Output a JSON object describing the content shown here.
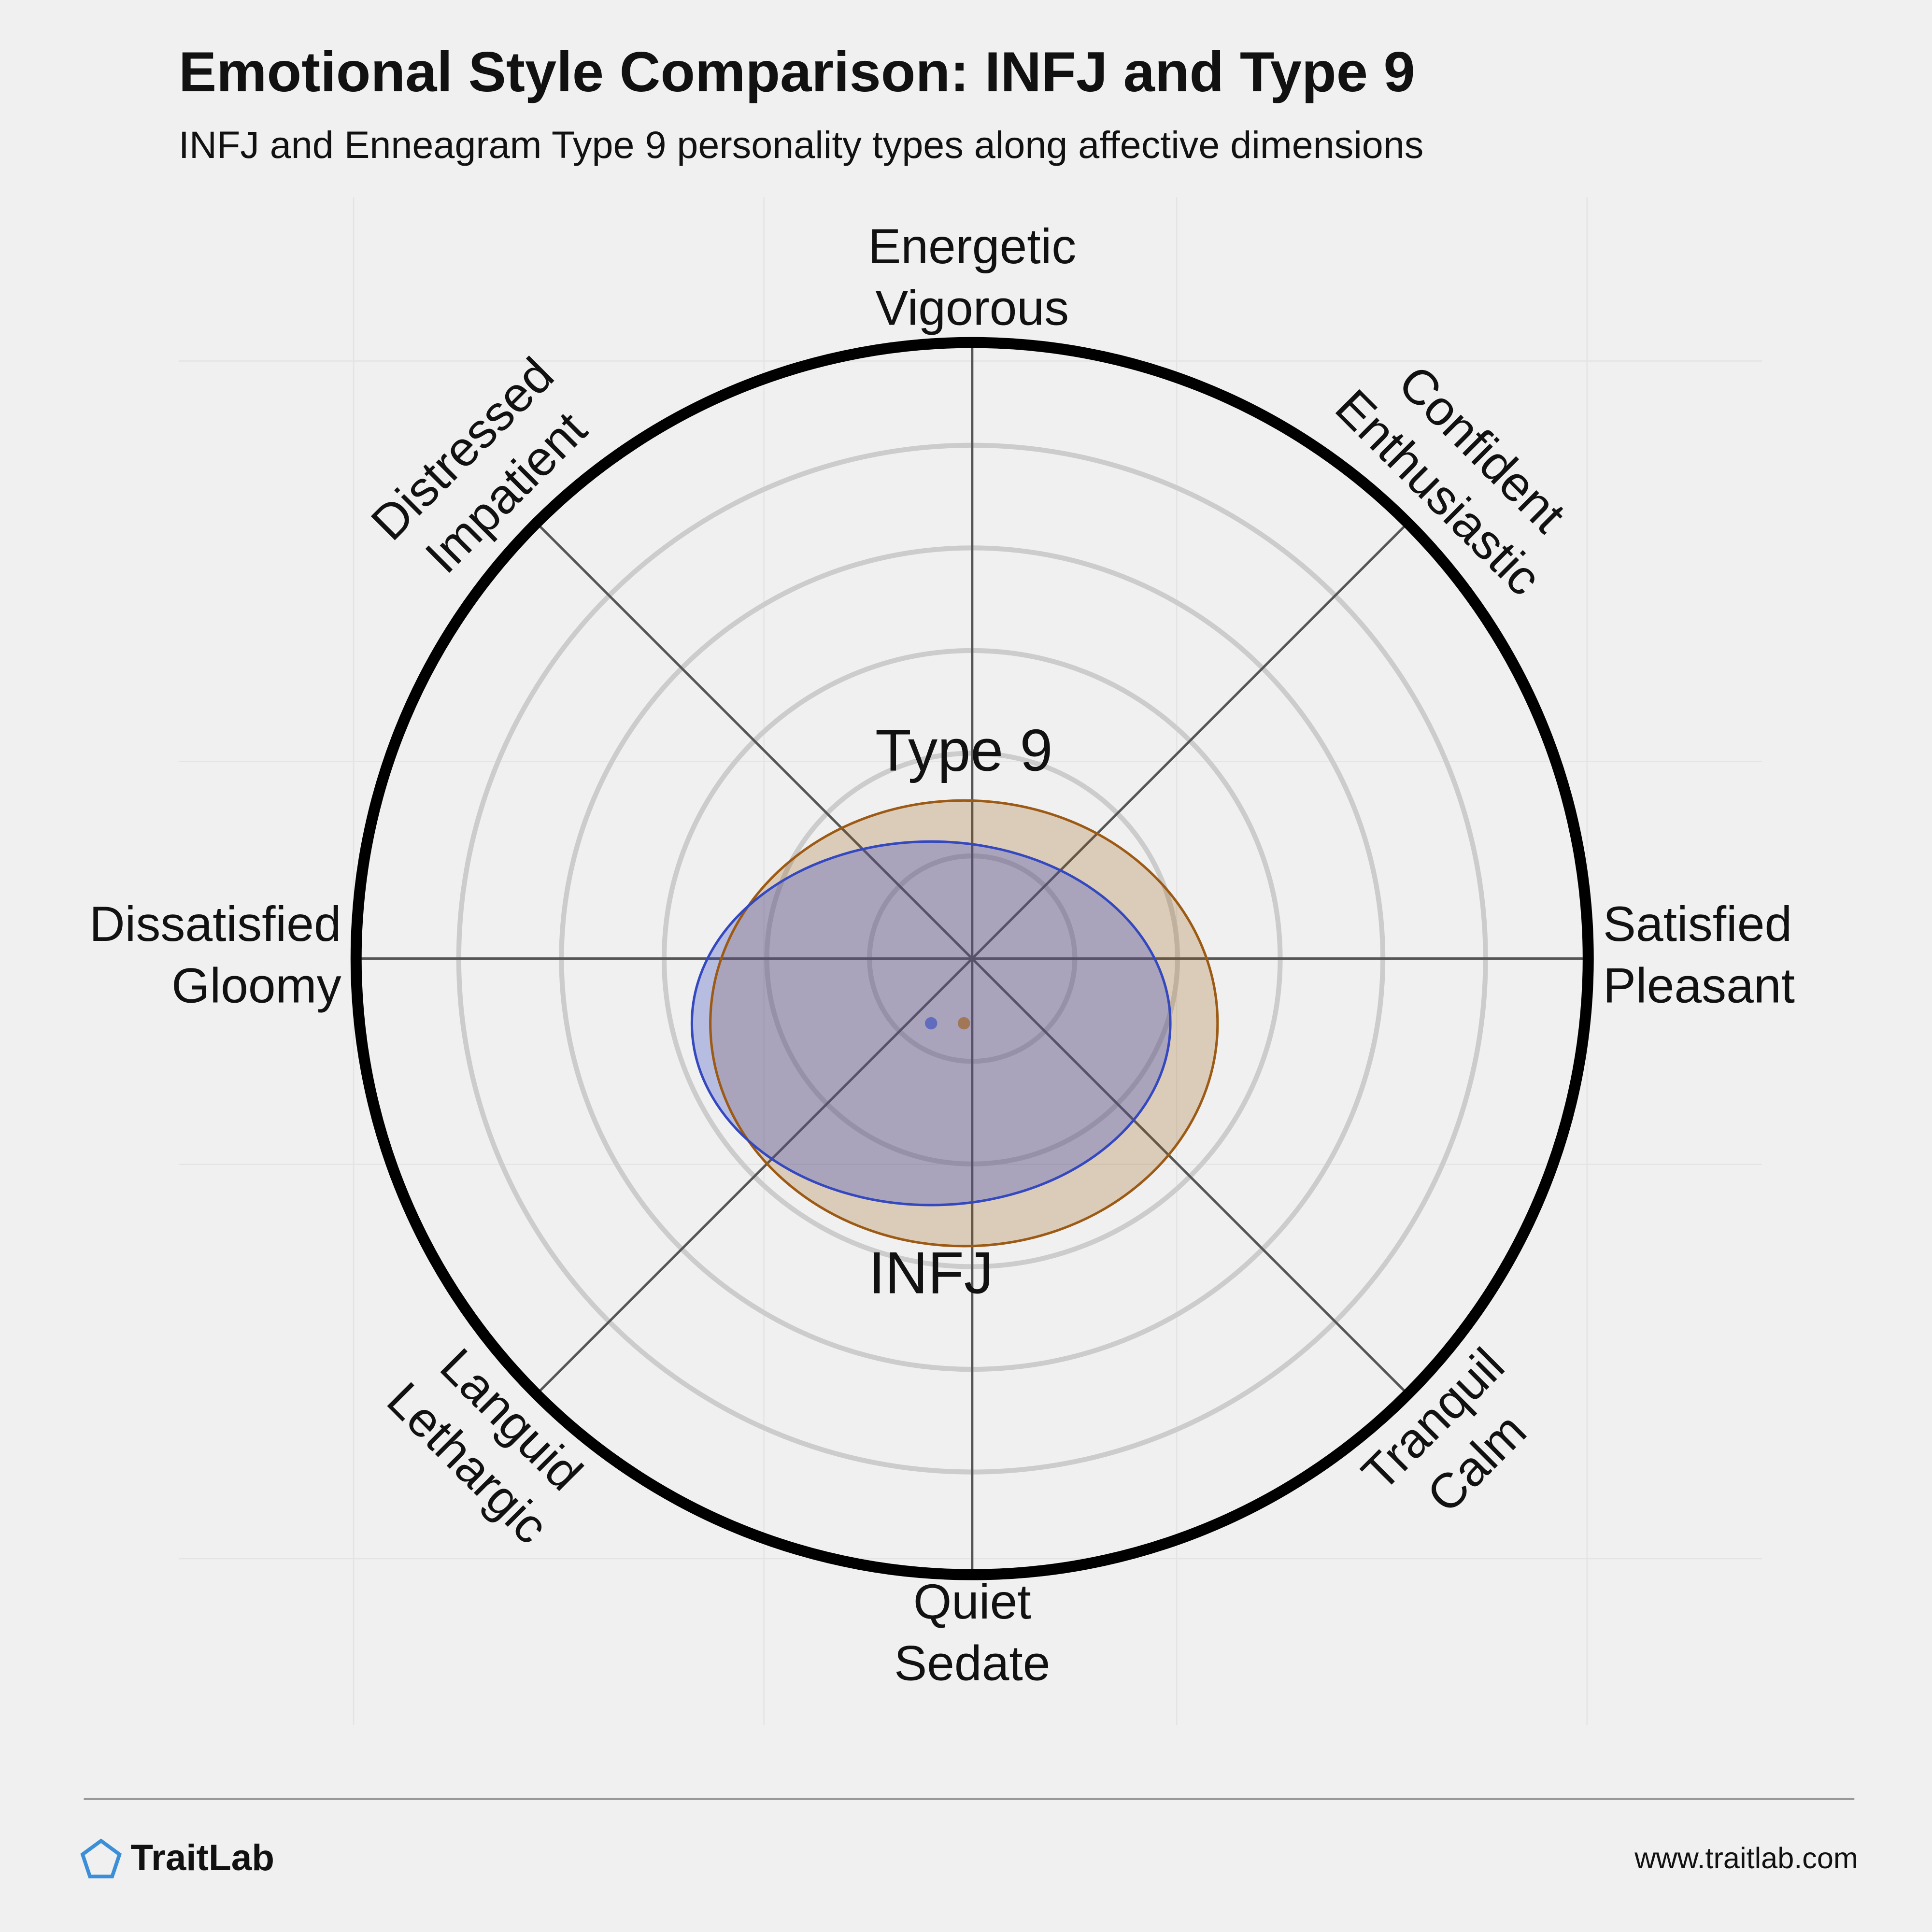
{
  "chart_data": {
    "type": "circumplex",
    "title": "Emotional Style Comparison: INFJ and Type 9",
    "subtitle": "INFJ and Enneagram Type 9 personality types along affective dimensions",
    "axes": [
      [
        "Energetic",
        "Vigorous"
      ],
      [
        "Confident",
        "Enthusiastic"
      ],
      [
        "Satisfied",
        "Pleasant"
      ],
      [
        "Tranquil",
        "Calm"
      ],
      [
        "Quiet",
        "Sedate"
      ],
      [
        "Languid",
        "Lethargic"
      ],
      [
        "Dissatisfied",
        "Gloomy"
      ],
      [
        "Distressed",
        "Impatient"
      ]
    ],
    "xlim": [
      -6,
      6
    ],
    "ylim": [
      -6,
      6
    ],
    "rings": [
      1,
      2,
      3,
      4,
      5
    ],
    "series": [
      {
        "name": "Type 9",
        "color": "#9c5a14",
        "center_x": -0.08,
        "center_y": -0.63,
        "rx": 2.47,
        "ry": 2.17
      },
      {
        "name": "INFJ",
        "color": "#3448c0",
        "center_x": -0.4,
        "center_y": -0.63,
        "rx": 2.33,
        "ry": 1.77
      }
    ]
  },
  "footer": {
    "brand": "TraitLab",
    "url": "www.traitlab.com"
  }
}
